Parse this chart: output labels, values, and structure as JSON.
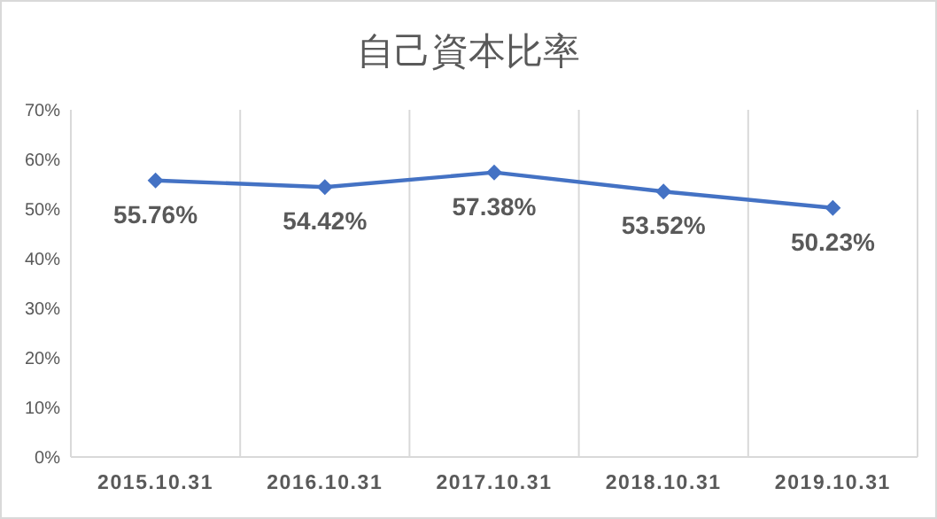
{
  "chart_data": {
    "type": "line",
    "title": "自己資本比率",
    "categories": [
      "2015.10.31",
      "2016.10.31",
      "2017.10.31",
      "2018.10.31",
      "2019.10.31"
    ],
    "series": [
      {
        "color": "#4472c4",
        "values": [
          55.76,
          54.42,
          57.38,
          53.52,
          50.23
        ]
      }
    ],
    "value_labels": [
      "55.76%",
      "54.42%",
      "57.38%",
      "53.52%",
      "50.23%"
    ],
    "ylim": [
      0,
      70
    ],
    "yticks": [
      {
        "value": 0,
        "label": "0%"
      },
      {
        "value": 10,
        "label": "10%"
      },
      {
        "value": 20,
        "label": "20%"
      },
      {
        "value": 30,
        "label": "30%"
      },
      {
        "value": 40,
        "label": "40%"
      },
      {
        "value": 50,
        "label": "50%"
      },
      {
        "value": 60,
        "label": "60%"
      },
      {
        "value": 70,
        "label": "70%"
      }
    ],
    "grid": "x",
    "marker": "diamond",
    "line_style": "solid"
  }
}
